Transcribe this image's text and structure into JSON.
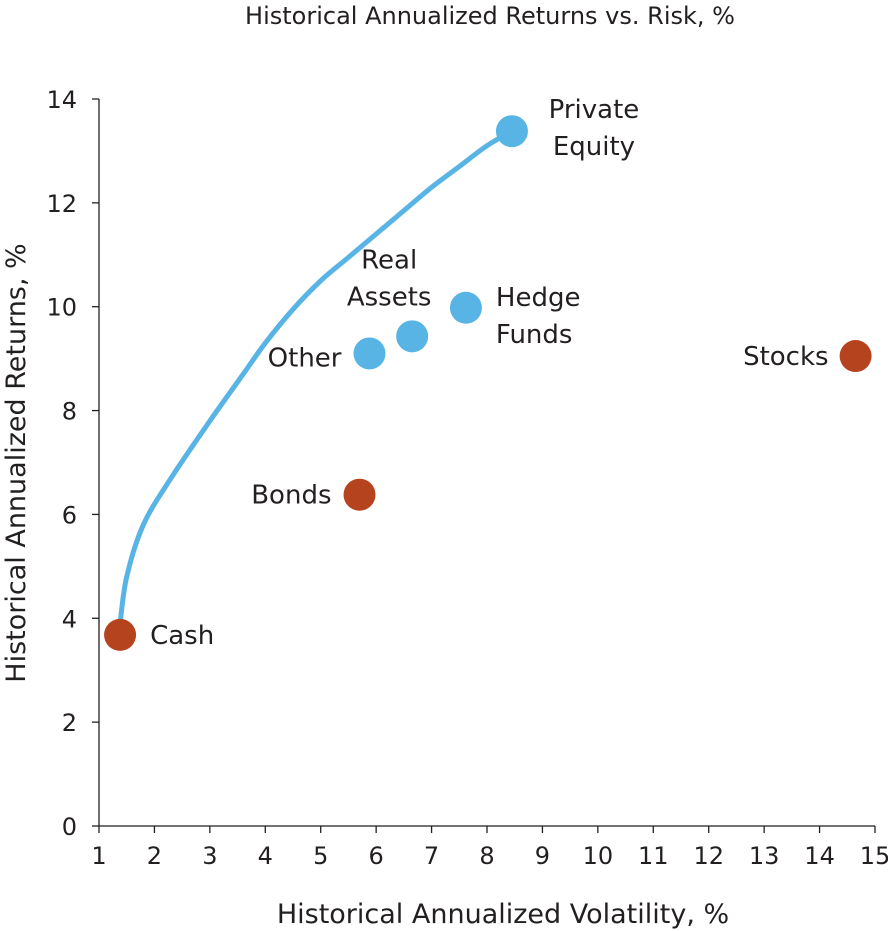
{
  "chart_data": {
    "type": "scatter",
    "title": "Historical Annualized Returns vs. Risk, %",
    "xlabel": "Historical Annualized Volatility, %",
    "ylabel": "Historical Annualized Returns, %",
    "xlim": [
      1,
      15
    ],
    "ylim": [
      0,
      14
    ],
    "x_ticks": [
      1,
      2,
      3,
      4,
      5,
      6,
      7,
      8,
      9,
      10,
      11,
      12,
      13,
      14,
      15
    ],
    "y_ticks": [
      0,
      2,
      4,
      6,
      8,
      10,
      12,
      14
    ],
    "grid": false,
    "colors": {
      "traditional": "#b5441e",
      "alternative": "#58b4e5",
      "frontier": "#58b4e5",
      "text": "#231f20",
      "axis": "#231f20"
    },
    "points": [
      {
        "label": "Cash",
        "x": 1.38,
        "y": 3.68,
        "group": "traditional"
      },
      {
        "label": "Bonds",
        "x": 5.7,
        "y": 6.38,
        "group": "traditional"
      },
      {
        "label": "Stocks",
        "x": 14.65,
        "y": 9.05,
        "group": "traditional"
      },
      {
        "label": "Other",
        "x": 5.88,
        "y": 9.1,
        "group": "alternative"
      },
      {
        "label": "Real Assets",
        "x": 6.65,
        "y": 9.43,
        "group": "alternative"
      },
      {
        "label": "Hedge Funds",
        "x": 7.62,
        "y": 9.98,
        "group": "alternative"
      },
      {
        "label": "Private Equity",
        "x": 8.45,
        "y": 13.38,
        "group": "alternative"
      }
    ],
    "frontier": {
      "x": [
        1.38,
        1.5,
        1.8,
        2.3,
        3.0,
        3.6,
        4.0,
        4.5,
        5.0,
        5.5,
        6.0,
        6.5,
        7.0,
        7.5,
        8.0,
        8.45
      ],
      "y": [
        3.9,
        4.8,
        5.8,
        6.7,
        7.8,
        8.7,
        9.3,
        9.95,
        10.5,
        10.95,
        11.4,
        11.85,
        12.3,
        12.7,
        13.1,
        13.38
      ]
    }
  }
}
